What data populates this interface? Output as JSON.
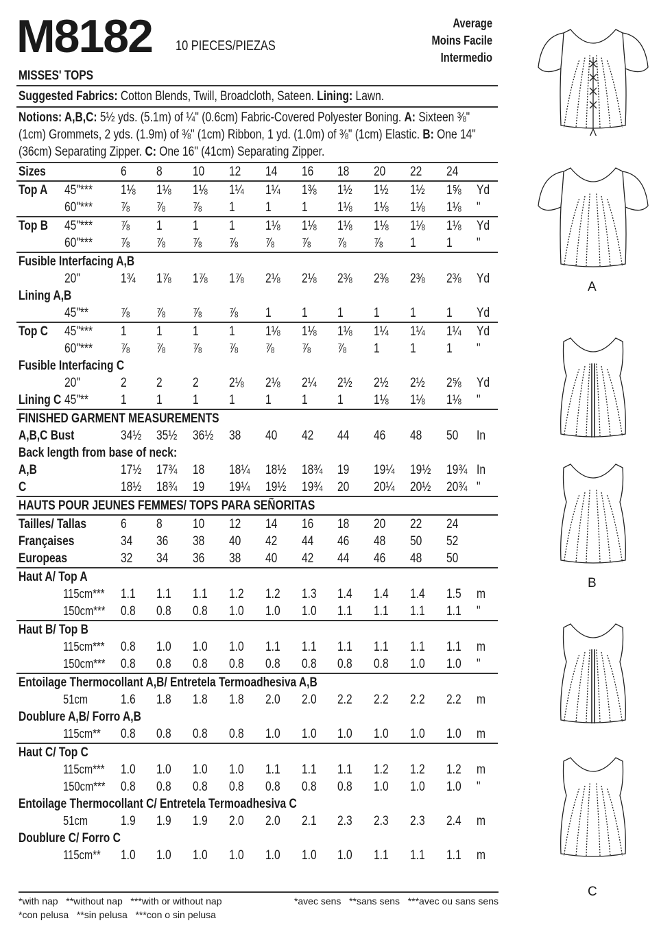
{
  "header": {
    "pattern_number": "M8182",
    "pieces": "10 PIECES/PIEZAS",
    "difficulty": [
      "Average",
      "Moins Facile",
      "Intermedio"
    ],
    "title": "MISSES' TOPS"
  },
  "fabrics": {
    "label": "Suggested Fabrics:",
    "text": " Cotton Blends, Twill, Broadcloth, Sateen. ",
    "lining_label": "Lining:",
    "lining_text": " Lawn."
  },
  "notions": {
    "label": "Notions: A,B,C:",
    "text1": " 5½ yds. (5.1m) of ¼\" (0.6cm) Fabric-Covered Polyester Boning. ",
    "a_label": "A:",
    "a_text": " Sixteen ⅜\" (1cm) Grommets, 2 yds. (1.9m) of ⅜\" (1cm) Ribbon, 1 yd. (1.0m) of ⅜\" (1cm) Elastic. ",
    "b_label": "B:",
    "b_text": " One 14\" (36cm) Separating Zipper. ",
    "c_label": "C:",
    "c_text": " One 16\" (41cm) Separating Zipper."
  },
  "rows": [
    {
      "label": "Sizes",
      "values": [
        "6",
        "8",
        "10",
        "12",
        "14",
        "16",
        "18",
        "20",
        "22",
        "24"
      ]
    },
    {
      "sep": true,
      "label": "Top A",
      "sub": "45\"***",
      "values": [
        "1⅛",
        "1⅛",
        "1⅛",
        "1¼",
        "1¼",
        "1⅜",
        "1½",
        "1½",
        "1½",
        "1⅝"
      ],
      "unit": "Yd"
    },
    {
      "sub": "60\"***",
      "values": [
        "⅞",
        "⅞",
        "⅞",
        "1",
        "1",
        "1",
        "1⅛",
        "1⅛",
        "1⅛",
        "1⅛"
      ],
      "unit": "\""
    },
    {
      "sep": true,
      "label": "Top B",
      "sub": "45\"***",
      "values": [
        "⅞",
        "1",
        "1",
        "1",
        "1⅛",
        "1⅛",
        "1⅛",
        "1⅛",
        "1⅛",
        "1⅛"
      ],
      "unit": "Yd"
    },
    {
      "sub": "60\"***",
      "values": [
        "⅞",
        "⅞",
        "⅞",
        "⅞",
        "⅞",
        "⅞",
        "⅞",
        "⅞",
        "1",
        "1"
      ],
      "unit": "\""
    },
    {
      "sep": true,
      "label": "Fusible Interfacing A,B"
    },
    {
      "sub": "20\"",
      "values": [
        "1¾",
        "1⅞",
        "1⅞",
        "1⅞",
        "2⅛",
        "2⅛",
        "2⅜",
        "2⅜",
        "2⅜",
        "2⅜"
      ],
      "unit": "Yd"
    },
    {
      "label": "Lining A,B"
    },
    {
      "sub": "45\"**",
      "values": [
        "⅞",
        "⅞",
        "⅞",
        "⅞",
        "1",
        "1",
        "1",
        "1",
        "1",
        "1"
      ],
      "unit": "Yd"
    },
    {
      "sep": true,
      "label": "Top C",
      "sub": "45\"***",
      "values": [
        "1",
        "1",
        "1",
        "1",
        "1⅛",
        "1⅛",
        "1⅛",
        "1¼",
        "1¼",
        "1¼"
      ],
      "unit": "Yd"
    },
    {
      "sub": "60\"***",
      "values": [
        "⅞",
        "⅞",
        "⅞",
        "⅞",
        "⅞",
        "⅞",
        "⅞",
        "1",
        "1",
        "1"
      ],
      "unit": "\""
    },
    {
      "label": "Fusible Interfacing C"
    },
    {
      "sub": "20\"",
      "values": [
        "2",
        "2",
        "2",
        "2⅛",
        "2⅛",
        "2¼",
        "2½",
        "2½",
        "2½",
        "2⅝"
      ],
      "unit": "Yd"
    },
    {
      "label": "Lining C",
      "sub": "45\"**",
      "values": [
        "1",
        "1",
        "1",
        "1",
        "1",
        "1",
        "1",
        "1⅛",
        "1⅛",
        "1⅛"
      ],
      "unit": "\""
    },
    {
      "sep": true,
      "label": "FINISHED GARMENT MEASUREMENTS"
    },
    {
      "label": "A,B,C Bust",
      "values": [
        "34½",
        "35½",
        "36½",
        "38",
        "40",
        "42",
        "44",
        "46",
        "48",
        "50"
      ],
      "unit": "In"
    },
    {
      "label": "Back length from base of neck:"
    },
    {
      "label": "A,B",
      "values": [
        "17½",
        "17¾",
        "18",
        "18¼",
        "18½",
        "18¾",
        "19",
        "19¼",
        "19½",
        "19¾"
      ],
      "unit": "In"
    },
    {
      "label": "C",
      "values": [
        "18½",
        "18¾",
        "19",
        "19¼",
        "19½",
        "19¾",
        "20",
        "20¼",
        "20½",
        "20¾"
      ],
      "unit": "\""
    },
    {
      "sep": true,
      "label": "HAUTS POUR JEUNES FEMMES/ TOPS PARA SEÑORITAS"
    },
    {
      "sep": true,
      "label": "Tailles/ Tallas",
      "values": [
        "6",
        "8",
        "10",
        "12",
        "14",
        "16",
        "18",
        "20",
        "22",
        "24"
      ]
    },
    {
      "label": "Françaises",
      "values": [
        "34",
        "36",
        "38",
        "40",
        "42",
        "44",
        "46",
        "48",
        "50",
        "52"
      ]
    },
    {
      "label": "Europeas",
      "values": [
        "32",
        "34",
        "36",
        "38",
        "40",
        "42",
        "44",
        "46",
        "48",
        "50"
      ]
    },
    {
      "sep": true,
      "label": "Haut A/ Top A"
    },
    {
      "sub": "115cm***",
      "metric": true,
      "values": [
        "1.1",
        "1.1",
        "1.1",
        "1.2",
        "1.2",
        "1.3",
        "1.4",
        "1.4",
        "1.4",
        "1.5"
      ],
      "unit": "m"
    },
    {
      "sub": "150cm***",
      "metric": true,
      "values": [
        "0.8",
        "0.8",
        "0.8",
        "1.0",
        "1.0",
        "1.0",
        "1.1",
        "1.1",
        "1.1",
        "1.1"
      ],
      "unit": "\""
    },
    {
      "sep": true,
      "label": "Haut B/ Top B"
    },
    {
      "sub": "115cm***",
      "metric": true,
      "values": [
        "0.8",
        "1.0",
        "1.0",
        "1.0",
        "1.1",
        "1.1",
        "1.1",
        "1.1",
        "1.1",
        "1.1"
      ],
      "unit": "m"
    },
    {
      "sub": "150cm***",
      "metric": true,
      "values": [
        "0.8",
        "0.8",
        "0.8",
        "0.8",
        "0.8",
        "0.8",
        "0.8",
        "0.8",
        "1.0",
        "1.0"
      ],
      "unit": "\""
    },
    {
      "sep": true,
      "label": "Entoilage Thermocollant A,B/ Entretela Termoadhesiva A,B"
    },
    {
      "sub": "51cm",
      "metric": true,
      "values": [
        "1.6",
        "1.8",
        "1.8",
        "1.8",
        "2.0",
        "2.0",
        "2.2",
        "2.2",
        "2.2",
        "2.2"
      ],
      "unit": "m"
    },
    {
      "label": "Doublure A,B/ Forro A,B"
    },
    {
      "sub": "115cm**",
      "metric": true,
      "values": [
        "0.8",
        "0.8",
        "0.8",
        "0.8",
        "1.0",
        "1.0",
        "1.0",
        "1.0",
        "1.0",
        "1.0"
      ],
      "unit": "m"
    },
    {
      "sep": true,
      "label": "Haut C/ Top C"
    },
    {
      "sub": "115cm***",
      "metric": true,
      "values": [
        "1.0",
        "1.0",
        "1.0",
        "1.0",
        "1.1",
        "1.1",
        "1.1",
        "1.2",
        "1.2",
        "1.2"
      ],
      "unit": "m"
    },
    {
      "sub": "150cm***",
      "metric": true,
      "values": [
        "0.8",
        "0.8",
        "0.8",
        "0.8",
        "0.8",
        "0.8",
        "0.8",
        "1.0",
        "1.0",
        "1.0"
      ],
      "unit": "\""
    },
    {
      "label": "Entoilage Thermocollant C/ Entretela Termoadhesiva C"
    },
    {
      "sub": "51cm",
      "metric": true,
      "values": [
        "1.9",
        "1.9",
        "1.9",
        "2.0",
        "2.0",
        "2.1",
        "2.3",
        "2.3",
        "2.3",
        "2.4"
      ],
      "unit": "m"
    },
    {
      "label": "Doublure C/ Forro C"
    },
    {
      "sub": "115cm**",
      "metric": true,
      "values": [
        "1.0",
        "1.0",
        "1.0",
        "1.0",
        "1.0",
        "1.0",
        "1.0",
        "1.1",
        "1.1",
        "1.1"
      ],
      "unit": "m"
    }
  ],
  "footnotes": {
    "en": "*with nap   **without nap   ***with or without nap",
    "es": "*con pelusa   **sin pelusa   ***con o sin pelusa",
    "fr": "*avec sens   **sans sens   ***avec ou sans sens"
  },
  "figures": {
    "a": "A",
    "b": "B",
    "c": "C"
  }
}
